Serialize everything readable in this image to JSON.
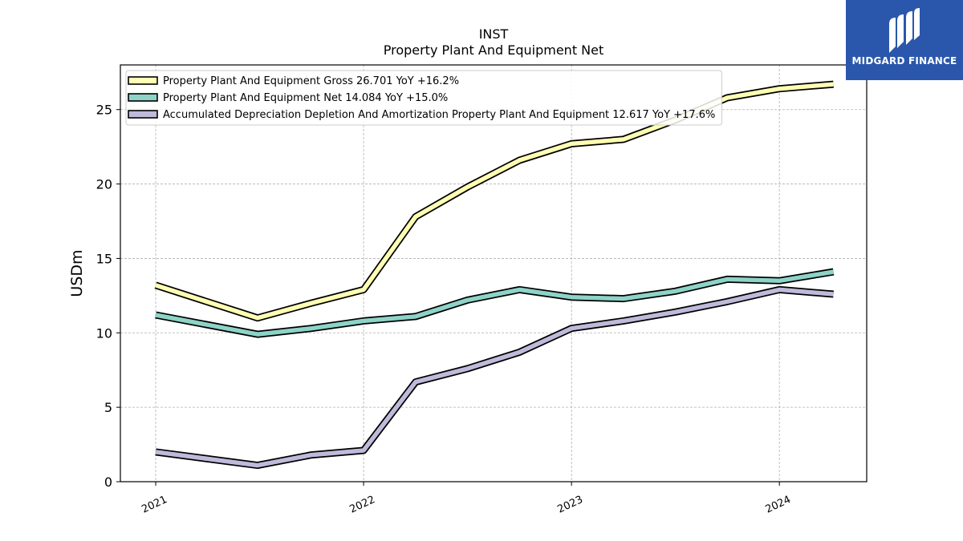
{
  "chart_data": {
    "type": "line",
    "title": "INST",
    "subtitle": "Property Plant And Equipment Net",
    "ylabel": "USDm",
    "xlabel": "",
    "ylim": [
      0,
      28
    ],
    "yticks": [
      0,
      5,
      10,
      15,
      20,
      25
    ],
    "xlim": [
      2020.83,
      2024.42
    ],
    "xticks": [
      {
        "value": 2021.0,
        "label": "2021"
      },
      {
        "value": 2022.0,
        "label": "2022"
      },
      {
        "value": 2023.0,
        "label": "2023"
      },
      {
        "value": 2024.0,
        "label": "2024"
      }
    ],
    "grid": true,
    "legend_position": "top-left",
    "x": [
      2021.0,
      2021.49,
      2021.75,
      2022.0,
      2022.25,
      2022.5,
      2022.75,
      2023.0,
      2023.25,
      2023.5,
      2023.75,
      2024.0,
      2024.26
    ],
    "series": [
      {
        "name": "Property Plant And Equipment Gross  26.701 YoY +16.2%",
        "color": "#ffffb3",
        "values": [
          13.2,
          11.0,
          12.0,
          12.9,
          17.8,
          19.8,
          21.6,
          22.7,
          23.0,
          24.3,
          25.8,
          26.4,
          26.7
        ]
      },
      {
        "name": "Property Plant And Equipment Net  14.084 YoY +15.0%",
        "color": "#8dd3c7",
        "values": [
          11.2,
          9.9,
          10.3,
          10.8,
          11.1,
          12.2,
          12.9,
          12.4,
          12.3,
          12.8,
          13.6,
          13.5,
          14.1
        ]
      },
      {
        "name": "Accumulated Depreciation Depletion And Amortization Property Plant And Equipment  12.617 YoY +17.6%",
        "color": "#bebada",
        "values": [
          2.0,
          1.1,
          1.8,
          2.1,
          6.7,
          7.6,
          8.7,
          10.3,
          10.8,
          11.4,
          12.1,
          12.9,
          12.6
        ]
      }
    ]
  },
  "branding": {
    "logo_text": "MIDGARD FINANCE",
    "logo_icon": "midgard-logo-icon",
    "logo_color": "#2a57ac"
  }
}
